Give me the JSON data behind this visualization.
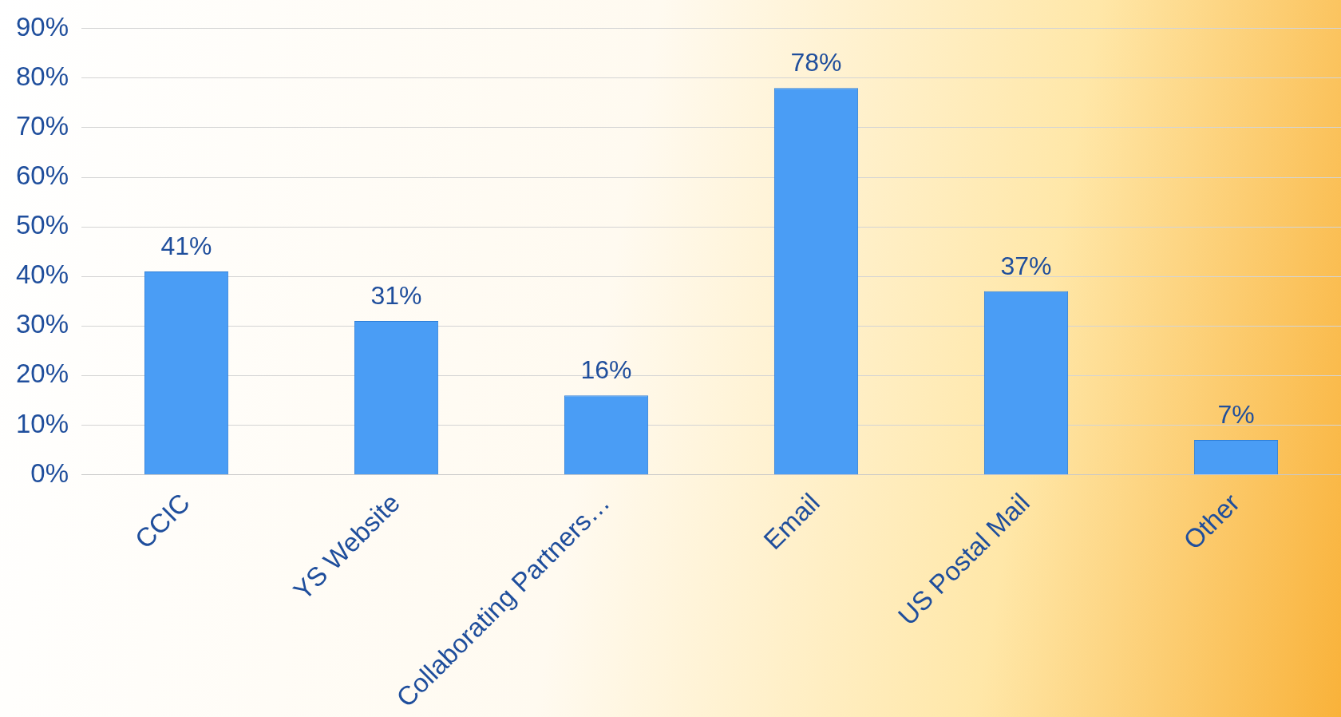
{
  "chart_data": {
    "type": "bar",
    "categories": [
      "CCIC",
      "YS Website",
      "Collaborating Partners…",
      "Email",
      "US Postal Mail",
      "Other"
    ],
    "values": [
      41,
      31,
      16,
      78,
      37,
      7
    ],
    "color": "#4a9df5",
    "value_labels": [
      "41%",
      "31%",
      "16%",
      "78%",
      "37%",
      "7%"
    ],
    "ylim": [
      0,
      90
    ],
    "yticks": [
      {
        "value": 0,
        "label": "0%"
      },
      {
        "value": 10,
        "label": "10%"
      },
      {
        "value": 20,
        "label": "20%"
      },
      {
        "value": 30,
        "label": "30%"
      },
      {
        "value": 40,
        "label": "40%"
      },
      {
        "value": 50,
        "label": "50%"
      },
      {
        "value": 60,
        "label": "60%"
      },
      {
        "value": 70,
        "label": "70%"
      },
      {
        "value": 80,
        "label": "80%"
      },
      {
        "value": 90,
        "label": "90%"
      }
    ],
    "grid": "y",
    "legend": false
  }
}
